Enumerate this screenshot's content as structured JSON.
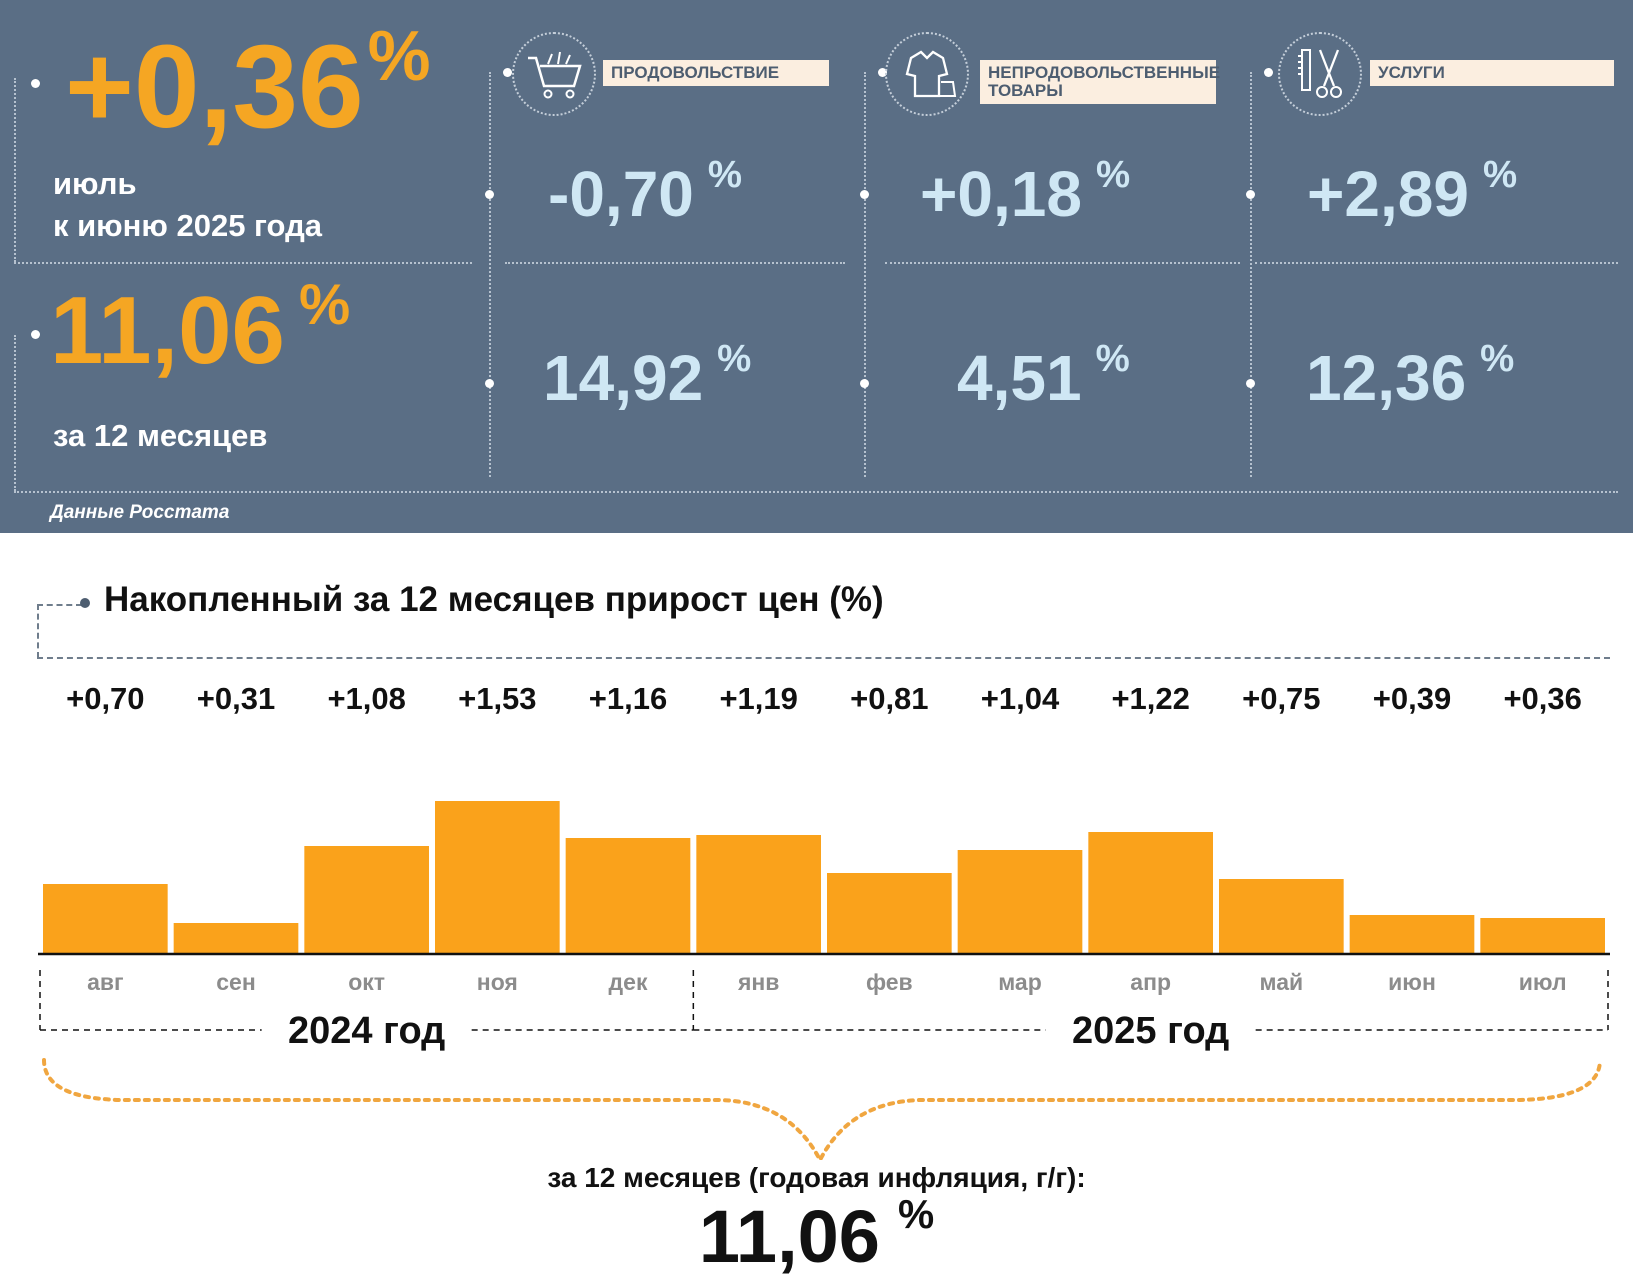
{
  "summary": {
    "monthly_value": "+0,36",
    "monthly_unit": "%",
    "monthly_caption_line1": "июль",
    "monthly_caption_line2": "к июню 2025 года",
    "annual_value": "11,06",
    "annual_unit": "%",
    "annual_caption": "за 12 месяцев",
    "source": "Данные Росстата"
  },
  "categories": [
    {
      "label": "ПРОДОВОЛЬСТВИЕ",
      "icon": "shopping-cart-icon",
      "monthly": "-0,70",
      "annual": "14,92",
      "unit": "%"
    },
    {
      "label": "НЕПРОДОВОЛЬСТВЕННЫЕ ТОВАРЫ",
      "icon": "clothing-icon",
      "monthly": "+0,18",
      "annual": "4,51",
      "unit": "%"
    },
    {
      "label": "УСЛУГИ",
      "icon": "scissors-comb-icon",
      "monthly": "+2,89",
      "annual": "12,36",
      "unit": "%"
    }
  ],
  "colors": {
    "panel": "#5a6e85",
    "accent_orange": "#f5a623",
    "value_blue": "#cfe7f4",
    "bar": "#faa21b"
  },
  "chart_data": {
    "type": "bar",
    "title": "Накопленный за 12 месяцев прирост цен (%)",
    "categories": [
      "авг",
      "сен",
      "окт",
      "ноя",
      "дек",
      "янв",
      "фев",
      "мар",
      "апр",
      "май",
      "июн",
      "июл"
    ],
    "values": [
      0.7,
      0.31,
      1.08,
      1.53,
      1.16,
      1.19,
      0.81,
      1.04,
      1.22,
      0.75,
      0.39,
      0.36
    ],
    "value_labels": [
      "+0,70",
      "+0,31",
      "+1,08",
      "+1,53",
      "+1,16",
      "+1,19",
      "+0,81",
      "+1,04",
      "+1,22",
      "+0,75",
      "+0,39",
      "+0,36"
    ],
    "year_groups": [
      {
        "label": "2024 год",
        "months": 5
      },
      {
        "label": "2025 год",
        "months": 7
      }
    ],
    "ylim": [
      0,
      1.6
    ],
    "grid": false,
    "total_caption": "за 12 месяцев (годовая инфляция, г/г):",
    "total_value": "11,06",
    "total_unit": "%"
  }
}
